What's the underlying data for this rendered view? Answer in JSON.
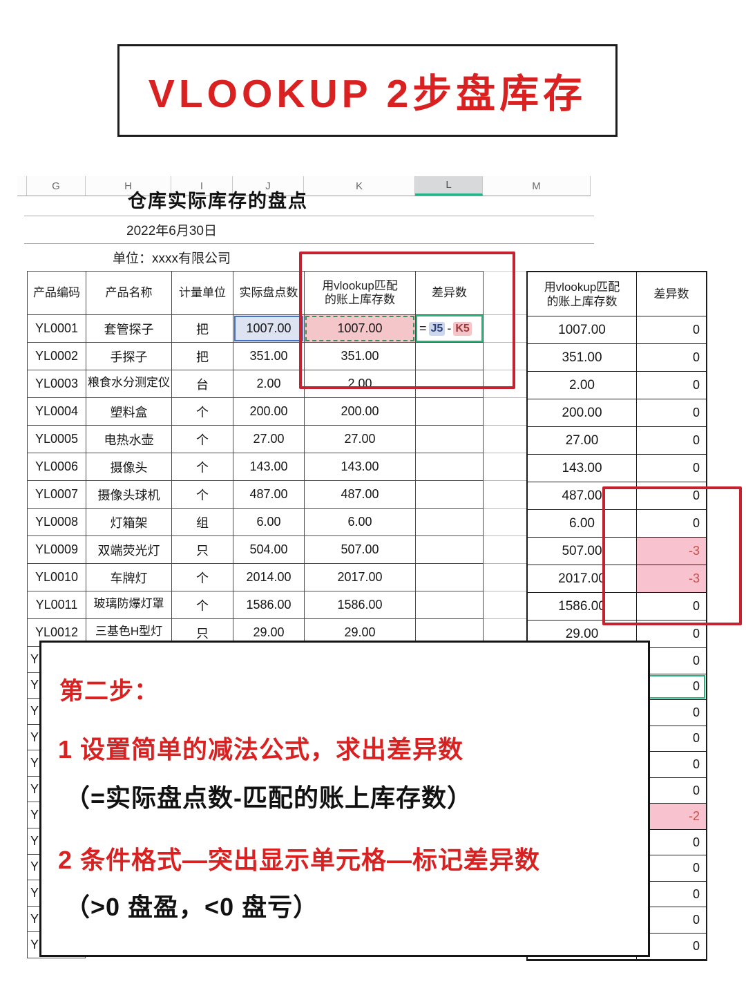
{
  "page_title": {
    "text": "VLOOKUP 2步盘库存"
  },
  "sheet": {
    "column_letters": [
      "G",
      "H",
      "I",
      "J",
      "K",
      "L",
      "M"
    ],
    "selected_column": "L",
    "doc_title": "仓库实际库存的盘点",
    "doc_date": "2022年6月30日",
    "doc_unit": "单位：xxxx有限公司",
    "table": {
      "headers": [
        "产品编码",
        "产品名称",
        "计量单位",
        "实际盘点数",
        "用vlookup匹配\n的账上库存数",
        "差异数",
        ""
      ],
      "rows": [
        {
          "code": "YL0001",
          "name": "套管探子",
          "unit": "把",
          "actual": "1007.00",
          "book": "1007.00",
          "diff": ""
        },
        {
          "code": "YL0002",
          "name": "手探子",
          "unit": "把",
          "actual": "351.00",
          "book": "351.00",
          "diff": ""
        },
        {
          "code": "YL0003",
          "name": "粮食水分测定仪",
          "unit": "台",
          "actual": "2.00",
          "book": "2.00",
          "diff": ""
        },
        {
          "code": "YL0004",
          "name": "塑料盒",
          "unit": "个",
          "actual": "200.00",
          "book": "200.00",
          "diff": ""
        },
        {
          "code": "YL0005",
          "name": "电热水壶",
          "unit": "个",
          "actual": "27.00",
          "book": "27.00",
          "diff": ""
        },
        {
          "code": "YL0006",
          "name": "摄像头",
          "unit": "个",
          "actual": "143.00",
          "book": "143.00",
          "diff": ""
        },
        {
          "code": "YL0007",
          "name": "摄像头球机",
          "unit": "个",
          "actual": "487.00",
          "book": "487.00",
          "diff": ""
        },
        {
          "code": "YL0008",
          "name": "灯箱架",
          "unit": "组",
          "actual": "6.00",
          "book": "6.00",
          "diff": ""
        },
        {
          "code": "YL0009",
          "name": "双端荧光灯",
          "unit": "只",
          "actual": "504.00",
          "book": "507.00",
          "diff": ""
        },
        {
          "code": "YL0010",
          "name": "车牌灯",
          "unit": "个",
          "actual": "2014.00",
          "book": "2017.00",
          "diff": ""
        },
        {
          "code": "YL0011",
          "name": "玻璃防爆灯罩",
          "unit": "个",
          "actual": "1586.00",
          "book": "1586.00",
          "diff": ""
        },
        {
          "code": "YL0012",
          "name": "三基色H型灯",
          "unit": "只",
          "actual": "29.00",
          "book": "29.00",
          "diff": ""
        }
      ],
      "formula_tokens": {
        "eq": "=",
        "ref1": "J5",
        "minus": "-",
        "ref2": "K5"
      },
      "hidden_row_hint": "Y"
    }
  },
  "right_panel": {
    "headers": [
      "用vlookup匹配\n的账上库存数",
      "差异数"
    ],
    "rows": [
      {
        "book": "1007.00",
        "diff": "0",
        "pink": false
      },
      {
        "book": "351.00",
        "diff": "0",
        "pink": false
      },
      {
        "book": "2.00",
        "diff": "0",
        "pink": false
      },
      {
        "book": "200.00",
        "diff": "0",
        "pink": false
      },
      {
        "book": "27.00",
        "diff": "0",
        "pink": false
      },
      {
        "book": "143.00",
        "diff": "0",
        "pink": false
      },
      {
        "book": "487.00",
        "diff": "0",
        "pink": false
      },
      {
        "book": "6.00",
        "diff": "0",
        "pink": false
      },
      {
        "book": "507.00",
        "diff": "-3",
        "pink": true
      },
      {
        "book": "2017.00",
        "diff": "-3",
        "pink": true
      },
      {
        "book": "1586.00",
        "diff": "0",
        "pink": false
      },
      {
        "book": "29.00",
        "diff": "0",
        "pink": false
      }
    ],
    "extra_rows": [
      {
        "diff": "0",
        "pink": false,
        "selected": false
      },
      {
        "diff": "0",
        "pink": false,
        "selected": true
      },
      {
        "diff": "0",
        "pink": false,
        "selected": false
      },
      {
        "diff": "0",
        "pink": false,
        "selected": false
      },
      {
        "diff": "0",
        "pink": false,
        "selected": false
      },
      {
        "diff": "0",
        "pink": false,
        "selected": false
      },
      {
        "diff": "-2",
        "pink": true,
        "selected": false
      },
      {
        "diff": "0",
        "pink": false,
        "selected": false
      },
      {
        "diff": "0",
        "pink": false,
        "selected": false
      },
      {
        "diff": "0",
        "pink": false,
        "selected": false
      },
      {
        "diff": "0",
        "pink": false,
        "selected": false
      },
      {
        "diff": "0",
        "pink": false,
        "selected": false
      }
    ]
  },
  "note_box": {
    "step_title": "第二步：",
    "line1": "1 设置简单的减法公式，求出差异数",
    "line2": "（=实际盘点数-匹配的账上库存数）",
    "line3": "2 条件格式—突出显示单元格—标记差异数",
    "line4": "（>0 盘盈，<0 盘亏）"
  },
  "colors": {
    "accent_red": "#d92121",
    "rect_red": "#c4222f",
    "pink_fill": "#f8c3ce",
    "pink_text": "#c9504e",
    "blue_fill": "#dde3f1",
    "blue_border": "#4472c4",
    "selection_green": "#26b577"
  }
}
